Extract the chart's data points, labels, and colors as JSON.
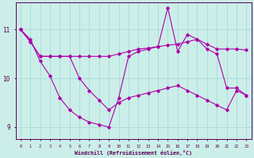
{
  "xlabel": "Windchill (Refroidissement éolien,°C)",
  "bg_color": "#cceee8",
  "line_color": "#aa00aa",
  "grid_color": "#aadddd",
  "x": [
    0,
    1,
    2,
    3,
    4,
    5,
    6,
    7,
    8,
    9,
    10,
    11,
    12,
    13,
    14,
    15,
    16,
    17,
    18,
    19,
    20,
    21,
    22,
    23
  ],
  "y_main": [
    11.0,
    10.8,
    10.35,
    10.05,
    9.6,
    9.35,
    9.2,
    9.1,
    9.05,
    9.0,
    9.6,
    10.45,
    10.55,
    10.6,
    10.65,
    11.45,
    10.55,
    10.9,
    10.8,
    10.6,
    10.5,
    9.8,
    9.8,
    9.65
  ],
  "y_upper": [
    11.0,
    10.75,
    10.45,
    10.45,
    10.45,
    10.45,
    10.45,
    10.45,
    10.45,
    10.45,
    10.5,
    10.55,
    10.6,
    10.62,
    10.65,
    10.68,
    10.7,
    10.75,
    10.8,
    10.7,
    10.6,
    10.6,
    10.6,
    10.58
  ],
  "y_lower": [
    11.0,
    10.75,
    10.45,
    10.45,
    10.45,
    10.45,
    10.0,
    9.75,
    9.55,
    9.35,
    9.5,
    9.6,
    9.65,
    9.7,
    9.75,
    9.8,
    9.85,
    9.75,
    9.65,
    9.55,
    9.45,
    9.35,
    9.75,
    9.65
  ],
  "yticks": [
    9,
    10,
    11
  ],
  "xticks": [
    0,
    1,
    2,
    3,
    4,
    5,
    6,
    7,
    8,
    9,
    10,
    11,
    12,
    13,
    14,
    15,
    16,
    17,
    18,
    19,
    20,
    21,
    22,
    23
  ],
  "ylim": [
    8.75,
    11.55
  ],
  "xlim": [
    -0.5,
    23.5
  ]
}
